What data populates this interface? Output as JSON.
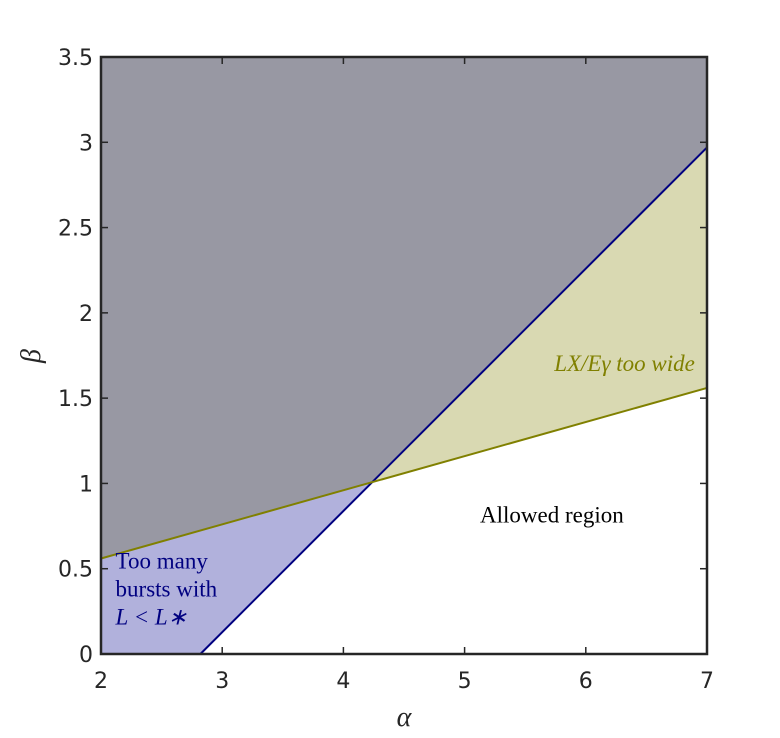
{
  "chart_data": {
    "type": "region",
    "xlabel": "α",
    "ylabel": "β",
    "xlim": [
      2,
      7
    ],
    "ylim": [
      0,
      3.5
    ],
    "xticks": [
      2,
      3,
      4,
      5,
      6,
      7
    ],
    "yticks": [
      0,
      0.5,
      1,
      1.5,
      2,
      2.5,
      3,
      3.5
    ],
    "excluded_color": "#9898a3",
    "series": [
      {
        "color": "#000080",
        "fill": "#b1b1dc",
        "x": [
          2.82,
          7
        ],
        "values": [
          0,
          2.97
        ]
      },
      {
        "color": "#808000",
        "fill": "#d9d9b2",
        "x": [
          2,
          7
        ],
        "values": [
          0.56,
          1.56
        ]
      }
    ],
    "annotations": [
      {
        "lines": [
          "Too many",
          "bursts with",
          "L < L∗"
        ],
        "color": "#000080",
        "x": 2.12,
        "y": 0.5
      },
      {
        "lines": [
          "LX/Eγ too wide"
        ],
        "color": "#808000",
        "x": 6.9,
        "y": 1.66
      },
      {
        "lines": [
          "Allowed region"
        ],
        "color": "#000000",
        "x": 5.72,
        "y": 0.77
      }
    ]
  }
}
